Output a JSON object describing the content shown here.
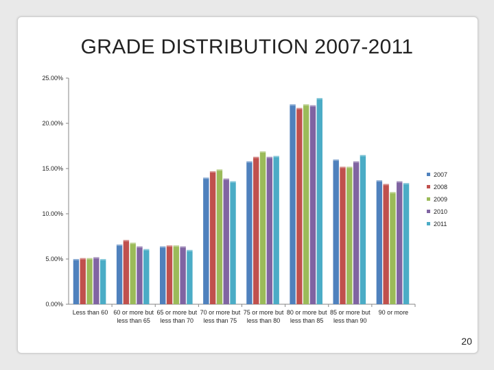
{
  "slide": {
    "title": "GRADE DISTRIBUTION 2007-2011",
    "page_number": "20"
  },
  "colors": {
    "2007": "#4f81bd",
    "2008": "#c0504d",
    "2009": "#9bbb59",
    "2010": "#8064a2",
    "2011": "#4bacc6"
  },
  "chart_data": {
    "type": "bar",
    "title": "",
    "xlabel": "",
    "ylabel": "",
    "ylim": [
      0,
      0.25
    ],
    "yticks": [
      "0.00%",
      "5.00%",
      "10.00%",
      "15.00%",
      "20.00%",
      "25.00%"
    ],
    "ytick_values": [
      0,
      0.05,
      0.1,
      0.15,
      0.2,
      0.25
    ],
    "grid": false,
    "legend_position": "right",
    "categories": [
      [
        "Less than 60"
      ],
      [
        "60 or more but",
        "less than 65"
      ],
      [
        "65 or more but",
        "less than 70"
      ],
      [
        "70 or more but",
        "less than 75"
      ],
      [
        "75 or more but",
        "less than 80"
      ],
      [
        "80 or more but",
        "less than 85"
      ],
      [
        "85 or more but",
        "less than 90"
      ],
      [
        "90 or more"
      ]
    ],
    "series": [
      {
        "name": "2007",
        "values": [
          0.05,
          0.066,
          0.064,
          0.14,
          0.158,
          0.221,
          0.16,
          0.137
        ]
      },
      {
        "name": "2008",
        "values": [
          0.051,
          0.071,
          0.065,
          0.147,
          0.163,
          0.217,
          0.152,
          0.133
        ]
      },
      {
        "name": "2009",
        "values": [
          0.051,
          0.068,
          0.065,
          0.149,
          0.169,
          0.221,
          0.152,
          0.124
        ]
      },
      {
        "name": "2010",
        "values": [
          0.052,
          0.064,
          0.064,
          0.139,
          0.163,
          0.22,
          0.158,
          0.136
        ]
      },
      {
        "name": "2011",
        "values": [
          0.05,
          0.061,
          0.06,
          0.136,
          0.164,
          0.228,
          0.165,
          0.134
        ]
      }
    ]
  }
}
